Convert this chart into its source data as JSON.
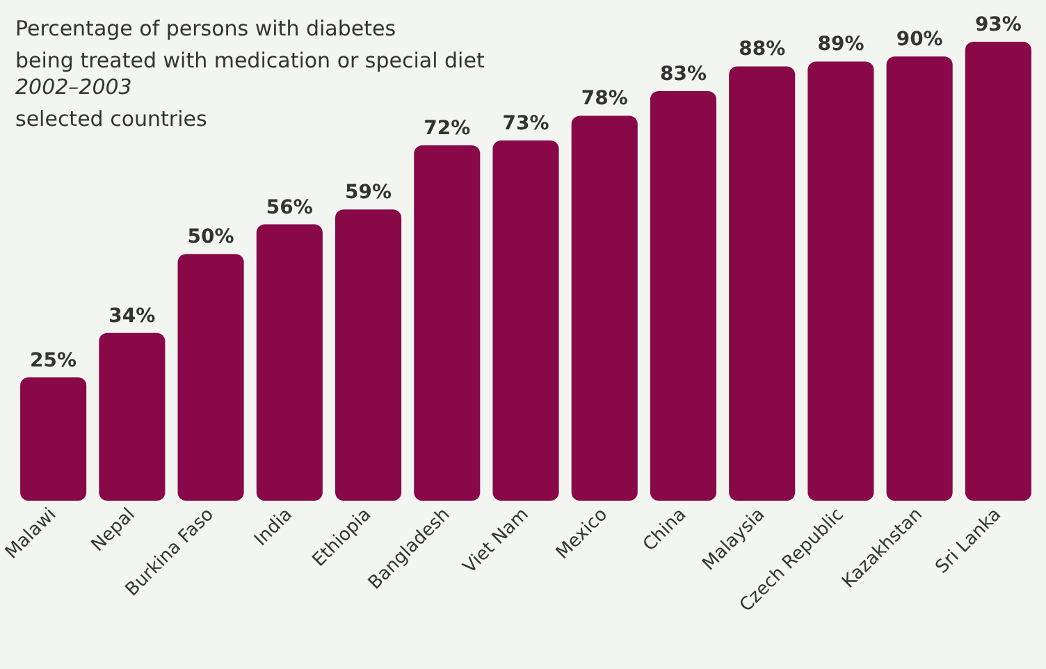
{
  "chart_data": {
    "type": "bar",
    "title": "Percentage of persons with diabetes\nbeing treated with medication or special diet",
    "subtitle": "2002–2003",
    "annotations": [
      "selected countries"
    ],
    "categories": [
      "Malawi",
      "Nepal",
      "Burkina Faso",
      "India",
      "Ethiopia",
      "Bangladesh",
      "Viet Nam",
      "Mexico",
      "China",
      "Malaysia",
      "Czech Republic",
      "Kazakhstan",
      "Sri Lanka"
    ],
    "values": [
      25,
      34,
      50,
      56,
      59,
      72,
      73,
      78,
      83,
      88,
      89,
      90,
      93
    ],
    "value_labels": [
      "25%",
      "34%",
      "50%",
      "56%",
      "59%",
      "72%",
      "73%",
      "78%",
      "83%",
      "88%",
      "89%",
      "90%",
      "93%"
    ],
    "color": "#880848"
  }
}
